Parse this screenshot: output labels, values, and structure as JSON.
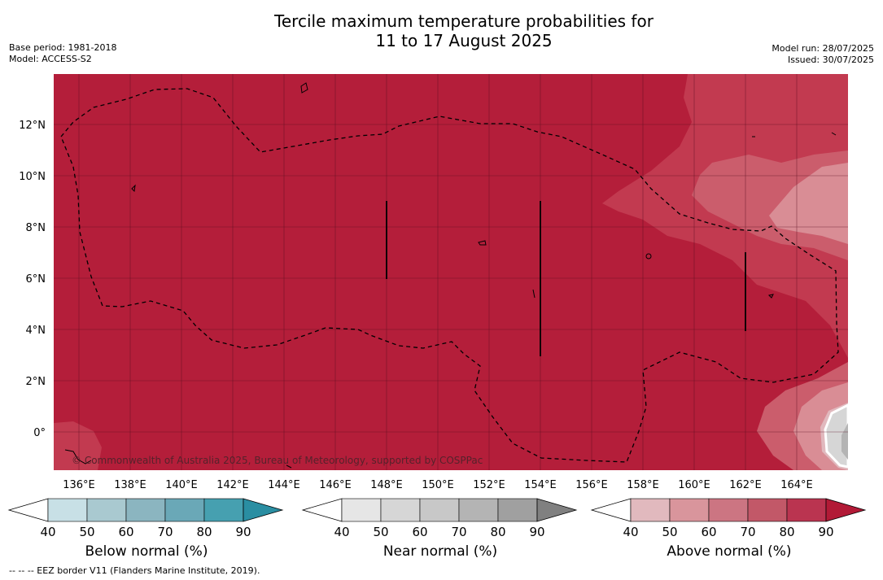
{
  "header": {
    "title_line1": "Tercile maximum temperature probabilities for",
    "title_line2": "11 to 17 August 2025",
    "base_period": "Base period: 1981-2018",
    "model": "Model: ACCESS-S2",
    "model_run": "Model run: 28/07/2025",
    "issued": "Issued: 30/07/2025"
  },
  "map": {
    "copyright": "© Commonwealth of Australia 2025, Bureau of Meteorology, supported by COSPPac",
    "lat_labels": [
      "12°N",
      "10°N",
      "8°N",
      "6°N",
      "4°N",
      "2°N",
      "0°"
    ],
    "lon_labels": [
      "136°E",
      "138°E",
      "140°E",
      "142°E",
      "144°E",
      "146°E",
      "148°E",
      "150°E",
      "152°E",
      "154°E",
      "156°E",
      "158°E",
      "160°E",
      "162°E",
      "164°E"
    ],
    "dominant_category": "Above normal, 90%",
    "colors": {
      "above_90": "#b41e3a",
      "above_80": "#c23a50",
      "above_70": "#cb5d6c",
      "above_60": "#d98d95",
      "near_normal_high": "#c8c8c8"
    }
  },
  "colorbars": [
    {
      "name": "below",
      "title": "Below normal (%)",
      "ticks": [
        "40",
        "50",
        "60",
        "70",
        "80",
        "90"
      ],
      "colors": [
        "#ffffff",
        "#c8e0e6",
        "#a9c9d0",
        "#8bb5c0",
        "#6aa8b7",
        "#46a0b0",
        "#2a8ea2"
      ]
    },
    {
      "name": "near",
      "title": "Near normal (%)",
      "ticks": [
        "40",
        "50",
        "60",
        "70",
        "80",
        "90"
      ],
      "colors": [
        "#ffffff",
        "#e6e6e6",
        "#d6d6d6",
        "#c8c8c8",
        "#b4b4b4",
        "#a0a0a0",
        "#808080"
      ]
    },
    {
      "name": "above",
      "title": "Above normal (%)",
      "ticks": [
        "40",
        "50",
        "60",
        "70",
        "80",
        "90"
      ],
      "colors": [
        "#ffffff",
        "#e1b9be",
        "#d9959c",
        "#cc7582",
        "#c25868",
        "#ba3450",
        "#b21a36"
      ]
    }
  ],
  "footnote": "--  --  -- EEZ border V11 (Flanders Marine Institute, 2019)."
}
